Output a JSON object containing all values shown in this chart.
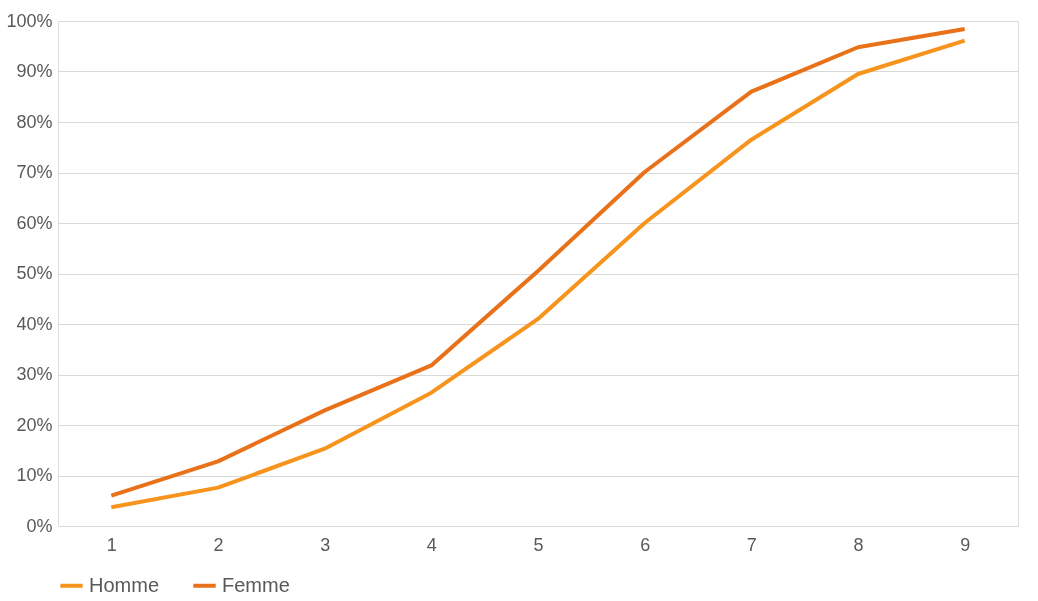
{
  "chart_data": {
    "type": "line",
    "categories": [
      "1",
      "2",
      "3",
      "4",
      "5",
      "6",
      "7",
      "8",
      "9"
    ],
    "series": [
      {
        "name": "Homme",
        "color": "#f7941d",
        "values": [
          3.7,
          7.6,
          15.3,
          26.4,
          41.0,
          60.0,
          76.5,
          89.5,
          96.1
        ]
      },
      {
        "name": "Femme",
        "color": "#e8711a",
        "values": [
          6.0,
          12.8,
          22.9,
          31.8,
          50.5,
          70.1,
          86.0,
          94.8,
          98.4
        ]
      }
    ],
    "ylim": [
      0,
      100
    ],
    "yticks": [
      {
        "value": 0,
        "label": "0%"
      },
      {
        "value": 10,
        "label": "10%"
      },
      {
        "value": 20,
        "label": "20%"
      },
      {
        "value": 30,
        "label": "30%"
      },
      {
        "value": 40,
        "label": "40%"
      },
      {
        "value": 50,
        "label": "50%"
      },
      {
        "value": 60,
        "label": "60%"
      },
      {
        "value": 70,
        "label": "70%"
      },
      {
        "value": 80,
        "label": "80%"
      },
      {
        "value": 90,
        "label": "90%"
      },
      {
        "value": 100,
        "label": "100%"
      }
    ],
    "grid": "y",
    "legend": "bottom",
    "marker": "none",
    "line_style": "solid"
  }
}
